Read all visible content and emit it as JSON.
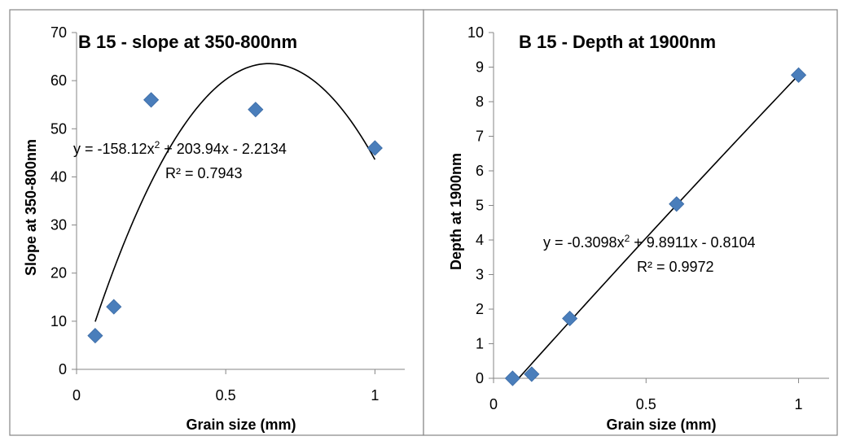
{
  "chart_data": [
    {
      "type": "scatter",
      "title": "B 15 - slope at 350-800nm",
      "xlabel": "Grain size (mm)",
      "ylabel": "Slope at 350-800nm",
      "xlim": [
        0,
        1.1
      ],
      "ylim": [
        0,
        70
      ],
      "x_ticks": [
        "0",
        "0.5",
        "1"
      ],
      "y_ticks": [
        "0",
        "10",
        "20",
        "30",
        "40",
        "50",
        "60",
        "70"
      ],
      "x_tick_values": [
        0,
        0.5,
        1
      ],
      "y_tick_values": [
        0,
        10,
        20,
        30,
        40,
        50,
        60,
        70
      ],
      "series": [
        {
          "x": [
            0.0625,
            0.125,
            0.25,
            0.6,
            1.0
          ],
          "y": [
            7,
            13,
            56,
            54,
            46
          ],
          "marker": "diamond",
          "color": "#4a7ebb"
        }
      ],
      "trendline": {
        "kind": "polynomial-2",
        "coefficients": [
          -158.12,
          203.94,
          -2.2134
        ],
        "x_range": [
          0.0625,
          1.0
        ],
        "color": "#000000",
        "equation_prefix": "y = -158.12x",
        "equation_sup": "2",
        "equation_suffix": " + 203.94x - 2.2134",
        "r2_label": "R² = 0.7943"
      },
      "grid": false,
      "legend": "none"
    },
    {
      "type": "scatter",
      "title": "B 15 - Depth at 1900nm",
      "xlabel": "Grain size (mm)",
      "ylabel": "Depth at 1900nm",
      "xlim": [
        0,
        1.1
      ],
      "ylim": [
        0,
        10
      ],
      "x_ticks": [
        "0",
        "0.5",
        "1"
      ],
      "y_ticks": [
        "0",
        "1",
        "2",
        "3",
        "4",
        "5",
        "6",
        "7",
        "8",
        "9",
        "10"
      ],
      "x_tick_values": [
        0,
        0.5,
        1
      ],
      "y_tick_values": [
        0,
        1,
        2,
        3,
        4,
        5,
        6,
        7,
        8,
        9,
        10
      ],
      "series": [
        {
          "x": [
            0.0625,
            0.125,
            0.25,
            0.6,
            1.0
          ],
          "y": [
            0.0,
            0.12,
            1.73,
            5.04,
            8.77
          ],
          "marker": "diamond",
          "color": "#4a7ebb"
        }
      ],
      "trendline": {
        "kind": "polynomial-2",
        "coefficients": [
          -0.3098,
          9.8911,
          -0.8104
        ],
        "x_range": [
          0.0625,
          1.0
        ],
        "color": "#000000",
        "equation_prefix": "y = -0.3098x",
        "equation_sup": "2",
        "equation_suffix": " + 9.8911x - 0.8104",
        "r2_label": "R² = 0.9972"
      },
      "grid": false,
      "legend": "none"
    }
  ]
}
